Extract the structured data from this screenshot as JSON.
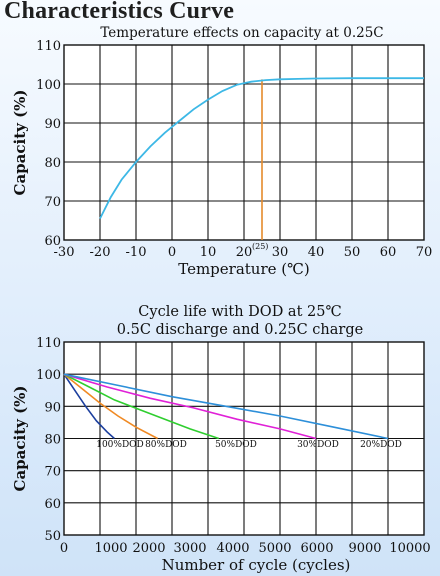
{
  "page_title": "Characteristics Curve",
  "chart_data": [
    {
      "type": "line",
      "title": "Temperature effects on capacity at 0.25C",
      "xlabel": "Temperature (℃)",
      "ylabel": "Capacity (%)",
      "xlim": [
        -30,
        70
      ],
      "ylim": [
        60,
        110
      ],
      "x_ticks": [
        "-30",
        "-20",
        "-10",
        "0",
        "10",
        "20",
        "30",
        "40",
        "50",
        "60",
        "70"
      ],
      "y_ticks": [
        "60",
        "70",
        "80",
        "90",
        "100",
        "110"
      ],
      "annotation": "(25)",
      "grid": true,
      "series": [
        {
          "color": "#3db8e6",
          "x": [
            -20,
            -17,
            -14,
            -10,
            -6,
            -2,
            2,
            6,
            10,
            14,
            18,
            22,
            26,
            30,
            35,
            40,
            50,
            60,
            70
          ],
          "y": [
            65.5,
            71,
            75.5,
            80,
            84,
            87.5,
            90.5,
            93.5,
            96,
            98.2,
            99.8,
            100.6,
            101,
            101.2,
            101.3,
            101.4,
            101.5,
            101.5,
            101.5
          ]
        }
      ],
      "reference_line": {
        "x": 25,
        "color": "#e58a2b"
      }
    },
    {
      "type": "line",
      "title_lines": [
        "Cycle life with DOD at 25℃",
        "0.5C discharge and 0.25C charge"
      ],
      "xlabel": "Number of cycle (cycles)",
      "ylabel": "Capacity (%)",
      "xlim": [
        0,
        10000
      ],
      "ylim": [
        50,
        110
      ],
      "x_ticks": [
        "0",
        "1000",
        "2000",
        "3000",
        "4000",
        "5000",
        "6000",
        "9000",
        "10000"
      ],
      "y_ticks": [
        "50",
        "60",
        "70",
        "80",
        "90",
        "100",
        "110"
      ],
      "grid": true,
      "series": [
        {
          "name": "100%DOD",
          "color": "#1c3f9e",
          "x": [
            0,
            300,
            600,
            900,
            1200,
            1400
          ],
          "y": [
            100,
            95,
            90,
            85.5,
            82,
            80
          ]
        },
        {
          "name": "80%DOD",
          "color": "#f08a24",
          "x": [
            0,
            500,
            1000,
            1500,
            2000,
            2600
          ],
          "y": [
            100,
            95.5,
            91,
            87,
            83.5,
            80
          ]
        },
        {
          "name": "50%DOD",
          "color": "#2fce2f",
          "x": [
            0,
            700,
            1400,
            2100,
            2800,
            3500,
            4300
          ],
          "y": [
            100,
            96,
            92,
            89,
            86,
            83,
            80
          ]
        },
        {
          "name": "30%DOD",
          "color": "#e021d7",
          "x": [
            0,
            1200,
            2400,
            3600,
            4800,
            6000,
            7000
          ],
          "y": [
            100,
            96,
            92.5,
            89.5,
            86,
            83,
            80
          ]
        },
        {
          "name": "20%DOD",
          "color": "#2d8fd9",
          "x": [
            0,
            1500,
            3000,
            4500,
            6000,
            7500,
            9000
          ],
          "y": [
            100,
            96.5,
            93,
            90,
            87,
            83.5,
            80
          ]
        }
      ]
    }
  ]
}
